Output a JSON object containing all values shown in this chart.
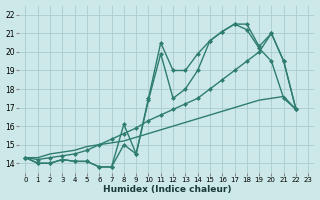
{
  "xlabel": "Humidex (Indice chaleur)",
  "bg_color": "#cde8e8",
  "grid_color": "#aacccc",
  "line_color": "#2e7d6e",
  "xlim": [
    -0.5,
    23.5
  ],
  "ylim": [
    13.5,
    22.5
  ],
  "xticks": [
    0,
    1,
    2,
    3,
    4,
    5,
    6,
    7,
    8,
    9,
    10,
    11,
    12,
    13,
    14,
    15,
    16,
    17,
    18,
    19,
    20,
    21,
    22,
    23
  ],
  "yticks": [
    14,
    15,
    16,
    17,
    18,
    19,
    20,
    21,
    22
  ],
  "series1_x": [
    0,
    1,
    2,
    3,
    4,
    5,
    6,
    7,
    8,
    9,
    10,
    11,
    12,
    13,
    14,
    15,
    16,
    17,
    18,
    19,
    20,
    21,
    22
  ],
  "series1_y": [
    14.3,
    14.0,
    14.0,
    14.2,
    14.1,
    14.1,
    13.8,
    13.8,
    16.1,
    14.5,
    17.5,
    20.5,
    19.0,
    19.0,
    19.9,
    20.6,
    21.1,
    21.5,
    21.2,
    20.2,
    19.5,
    17.5,
    16.9
  ],
  "series2_x": [
    0,
    1,
    2,
    3,
    4,
    5,
    6,
    7,
    8,
    9,
    10,
    11,
    12,
    13,
    14,
    15,
    16,
    17,
    18,
    19,
    20,
    21,
    22
  ],
  "series2_y": [
    14.3,
    14.0,
    14.0,
    14.2,
    14.1,
    14.1,
    13.8,
    13.8,
    15.0,
    14.5,
    17.4,
    19.9,
    17.5,
    18.0,
    19.0,
    20.6,
    21.1,
    21.5,
    21.5,
    20.3,
    21.0,
    19.5,
    16.9
  ],
  "series3_x": [
    0,
    1,
    2,
    3,
    4,
    5,
    6,
    7,
    8,
    9,
    10,
    11,
    12,
    13,
    14,
    15,
    16,
    17,
    18,
    19,
    20,
    21,
    22
  ],
  "series3_y": [
    14.3,
    14.2,
    14.3,
    14.4,
    14.5,
    14.7,
    15.0,
    15.3,
    15.6,
    15.9,
    16.3,
    16.6,
    16.9,
    17.2,
    17.5,
    18.0,
    18.5,
    19.0,
    19.5,
    20.0,
    21.0,
    19.5,
    16.9
  ],
  "series4_x": [
    0,
    1,
    2,
    3,
    4,
    5,
    6,
    7,
    8,
    9,
    10,
    11,
    12,
    13,
    14,
    15,
    16,
    17,
    18,
    19,
    20,
    21,
    22
  ],
  "series4_y": [
    14.3,
    14.3,
    14.5,
    14.6,
    14.7,
    14.9,
    15.0,
    15.1,
    15.2,
    15.4,
    15.6,
    15.8,
    16.0,
    16.2,
    16.4,
    16.6,
    16.8,
    17.0,
    17.2,
    17.4,
    17.5,
    17.6,
    16.9
  ],
  "marker": "D",
  "markersize": 2.5,
  "linewidth": 1.0
}
